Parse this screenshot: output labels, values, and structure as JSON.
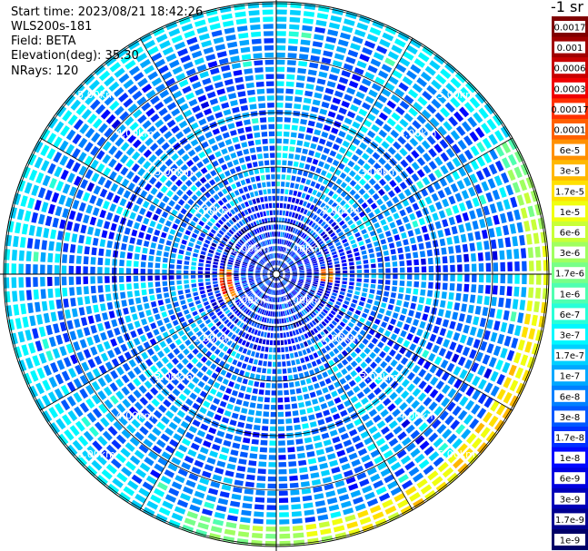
{
  "info": {
    "start_time": "Start time: 2023/08/21 18:42:26",
    "station": "WLS200s-181",
    "field": "Field: BETA",
    "elevation": "Elevation(deg): 35.30",
    "nrays": "NRays: 120"
  },
  "colorbar": {
    "title": "-1 sr",
    "labels": [
      "0.0017",
      "0.001",
      "0.0006",
      "0.0003",
      "0.00017",
      "0.0001",
      "6e-5",
      "3e-5",
      "1.7e-5",
      "1e-5",
      "6e-6",
      "3e-6",
      "1.7e-6",
      "1e-6",
      "6e-7",
      "3e-7",
      "1.7e-7",
      "1e-7",
      "6e-8",
      "3e-8",
      "1.7e-8",
      "1e-8",
      "6e-9",
      "3e-9",
      "1.7e-9",
      "1e-9"
    ],
    "colors": [
      "#800000",
      "#a00000",
      "#c80000",
      "#f00000",
      "#ff3000",
      "#ff6000",
      "#ff9000",
      "#ffb800",
      "#ffe000",
      "#f0ff10",
      "#c8ff38",
      "#a0ff60",
      "#78ff88",
      "#50ffb0",
      "#28ffd8",
      "#00f8ff",
      "#00d0ff",
      "#00a8ff",
      "#0080ff",
      "#0058ff",
      "#0030ff",
      "#0008ff",
      "#0000e0",
      "#0000b8",
      "#000090",
      "#000068"
    ]
  },
  "chart_data": {
    "type": "polar-ppi",
    "field": "BETA",
    "units": "-1 sr",
    "scale": "log",
    "range_rings_km": [
      1,
      2,
      3,
      4,
      5
    ],
    "ring_labels": [
      "1.00km",
      "2.00km",
      "3.00km",
      "4.00km",
      "5.00km"
    ],
    "nrays": 120,
    "elevation_deg": 35.3
  }
}
